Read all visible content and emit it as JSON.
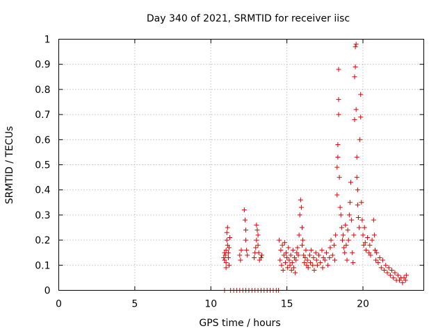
{
  "chart_data": {
    "type": "scatter",
    "title": "Day 340 of 2021, SRMTID for receiver iisc",
    "xlabel": "GPS time / hours",
    "ylabel": "SRMTID / TECUs",
    "xlim": [
      0,
      24
    ],
    "ylim": [
      0,
      1
    ],
    "xticks": [
      0,
      5,
      10,
      15,
      20
    ],
    "yticks": [
      0,
      0.1,
      0.2,
      0.3,
      0.4,
      0.5,
      0.6,
      0.7,
      0.8,
      0.9,
      1
    ],
    "xtick_labels": [
      "0",
      "5",
      "10",
      "15",
      "20"
    ],
    "ytick_labels": [
      "0",
      "0.1",
      "0.2",
      "0.3",
      "0.4",
      "0.5",
      "0.6",
      "0.7",
      "0.8",
      "0.9",
      "1"
    ],
    "grid": true,
    "marker": "+",
    "series_color": "#e00000",
    "series": [
      {
        "name": "SRMTID",
        "points": [
          [
            10.9,
            0.0
          ],
          [
            11.3,
            0.0
          ],
          [
            11.5,
            0.0
          ],
          [
            11.7,
            0.0
          ],
          [
            11.9,
            0.0
          ],
          [
            12.1,
            0.0
          ],
          [
            12.3,
            0.0
          ],
          [
            12.5,
            0.0
          ],
          [
            12.7,
            0.0
          ],
          [
            12.9,
            0.0
          ],
          [
            13.1,
            0.0
          ],
          [
            13.3,
            0.0
          ],
          [
            13.5,
            0.0
          ],
          [
            13.7,
            0.0
          ],
          [
            13.9,
            0.0
          ],
          [
            14.1,
            0.0
          ],
          [
            14.3,
            0.0
          ],
          [
            14.45,
            0.0
          ],
          [
            10.85,
            0.13
          ],
          [
            10.9,
            0.12
          ],
          [
            10.95,
            0.14
          ],
          [
            11.0,
            0.11
          ],
          [
            11.0,
            0.16
          ],
          [
            11.05,
            0.2
          ],
          [
            11.05,
            0.23
          ],
          [
            11.1,
            0.25
          ],
          [
            11.1,
            0.18
          ],
          [
            11.15,
            0.15
          ],
          [
            11.15,
            0.13
          ],
          [
            11.2,
            0.1
          ],
          [
            11.2,
            0.17
          ],
          [
            11.25,
            0.21
          ],
          [
            10.9,
            0.15
          ],
          [
            11.0,
            0.09
          ],
          [
            11.9,
            0.14
          ],
          [
            12.0,
            0.16
          ],
          [
            11.95,
            0.12
          ],
          [
            12.2,
            0.32
          ],
          [
            12.25,
            0.28
          ],
          [
            12.3,
            0.24
          ],
          [
            12.3,
            0.2
          ],
          [
            12.35,
            0.16
          ],
          [
            12.4,
            0.14
          ],
          [
            12.85,
            0.13
          ],
          [
            12.9,
            0.15
          ],
          [
            12.95,
            0.17
          ],
          [
            13.0,
            0.2
          ],
          [
            13.0,
            0.26
          ],
          [
            13.05,
            0.24
          ],
          [
            13.1,
            0.22
          ],
          [
            13.1,
            0.18
          ],
          [
            13.15,
            0.15
          ],
          [
            13.2,
            0.12
          ],
          [
            13.3,
            0.13
          ],
          [
            13.35,
            0.14
          ],
          [
            14.5,
            0.2
          ],
          [
            14.55,
            0.12
          ],
          [
            14.6,
            0.16
          ],
          [
            14.65,
            0.1
          ],
          [
            14.7,
            0.18
          ],
          [
            14.75,
            0.08
          ],
          [
            14.8,
            0.14
          ],
          [
            14.85,
            0.19
          ],
          [
            14.9,
            0.11
          ],
          [
            14.95,
            0.15
          ],
          [
            15.0,
            0.13
          ],
          [
            15.05,
            0.09
          ],
          [
            15.1,
            0.17
          ],
          [
            15.15,
            0.12
          ],
          [
            15.2,
            0.1
          ],
          [
            15.25,
            0.14
          ],
          [
            15.3,
            0.08
          ],
          [
            15.35,
            0.11
          ],
          [
            15.4,
            0.16
          ],
          [
            15.45,
            0.09
          ],
          [
            15.5,
            0.13
          ],
          [
            15.55,
            0.07
          ],
          [
            15.6,
            0.12
          ],
          [
            15.65,
            0.15
          ],
          [
            15.7,
            0.17
          ],
          [
            15.75,
            0.14
          ],
          [
            15.8,
            0.22
          ],
          [
            15.85,
            0.3
          ],
          [
            15.9,
            0.36
          ],
          [
            15.95,
            0.33
          ],
          [
            16.0,
            0.25
          ],
          [
            16.0,
            0.18
          ],
          [
            16.05,
            0.2
          ],
          [
            16.1,
            0.14
          ],
          [
            16.15,
            0.11
          ],
          [
            16.2,
            0.13
          ],
          [
            16.25,
            0.16
          ],
          [
            16.3,
            0.1
          ],
          [
            16.35,
            0.12
          ],
          [
            16.4,
            0.09
          ],
          [
            16.5,
            0.14
          ],
          [
            16.55,
            0.11
          ],
          [
            16.6,
            0.16
          ],
          [
            16.7,
            0.1
          ],
          [
            16.75,
            0.13
          ],
          [
            16.8,
            0.08
          ],
          [
            16.9,
            0.15
          ],
          [
            16.95,
            0.12
          ],
          [
            17.0,
            0.1
          ],
          [
            17.1,
            0.14
          ],
          [
            17.2,
            0.11
          ],
          [
            17.3,
            0.16
          ],
          [
            17.35,
            0.09
          ],
          [
            17.4,
            0.13
          ],
          [
            17.5,
            0.12
          ],
          [
            17.6,
            0.15
          ],
          [
            17.7,
            0.1
          ],
          [
            17.8,
            0.13
          ],
          [
            17.85,
            0.17
          ],
          [
            17.9,
            0.2
          ],
          [
            18.0,
            0.14
          ],
          [
            18.1,
            0.18
          ],
          [
            18.15,
            0.12
          ],
          [
            18.2,
            0.22
          ],
          [
            18.3,
            0.38
          ],
          [
            18.3,
            0.49
          ],
          [
            18.35,
            0.53
          ],
          [
            18.35,
            0.58
          ],
          [
            18.4,
            0.7
          ],
          [
            18.4,
            0.76
          ],
          [
            18.4,
            0.88
          ],
          [
            18.45,
            0.45
          ],
          [
            18.5,
            0.33
          ],
          [
            18.55,
            0.3
          ],
          [
            18.6,
            0.25
          ],
          [
            18.65,
            0.2
          ],
          [
            18.7,
            0.22
          ],
          [
            18.75,
            0.17
          ],
          [
            18.8,
            0.15
          ],
          [
            18.85,
            0.26
          ],
          [
            18.9,
            0.18
          ],
          [
            18.95,
            0.12
          ],
          [
            19.0,
            0.24
          ],
          [
            19.05,
            0.2
          ],
          [
            19.1,
            0.3
          ],
          [
            19.15,
            0.35
          ],
          [
            19.2,
            0.43
          ],
          [
            19.25,
            0.28
          ],
          [
            19.3,
            0.15
          ],
          [
            19.35,
            0.11
          ],
          [
            19.4,
            0.22
          ],
          [
            19.45,
            0.68
          ],
          [
            19.45,
            0.85
          ],
          [
            19.5,
            0.89
          ],
          [
            19.5,
            0.97
          ],
          [
            19.55,
            0.98
          ],
          [
            19.55,
            0.72
          ],
          [
            19.6,
            0.53
          ],
          [
            19.6,
            0.45
          ],
          [
            19.65,
            0.4
          ],
          [
            19.65,
            0.34
          ],
          [
            19.7,
            0.29
          ],
          [
            19.75,
            0.25
          ],
          [
            19.8,
            0.6
          ],
          [
            19.85,
            0.69
          ],
          [
            19.85,
            0.78
          ],
          [
            19.9,
            0.35
          ],
          [
            19.95,
            0.28
          ],
          [
            20.0,
            0.22
          ],
          [
            20.05,
            0.18
          ],
          [
            20.1,
            0.25
          ],
          [
            20.15,
            0.19
          ],
          [
            20.2,
            0.16
          ],
          [
            20.3,
            0.21
          ],
          [
            20.4,
            0.15
          ],
          [
            20.45,
            0.18
          ],
          [
            20.5,
            0.14
          ],
          [
            20.6,
            0.2
          ],
          [
            20.7,
            0.28
          ],
          [
            20.75,
            0.22
          ],
          [
            20.8,
            0.16
          ],
          [
            20.85,
            0.12
          ],
          [
            20.9,
            0.15
          ],
          [
            21.0,
            0.11
          ],
          [
            21.1,
            0.13
          ],
          [
            21.2,
            0.09
          ],
          [
            21.3,
            0.12
          ],
          [
            21.4,
            0.08
          ],
          [
            21.5,
            0.1
          ],
          [
            21.6,
            0.07
          ],
          [
            21.7,
            0.09
          ],
          [
            21.8,
            0.06
          ],
          [
            21.9,
            0.08
          ],
          [
            22.0,
            0.05
          ],
          [
            22.1,
            0.07
          ],
          [
            22.2,
            0.04
          ],
          [
            22.3,
            0.06
          ],
          [
            22.4,
            0.04
          ],
          [
            22.5,
            0.05
          ],
          [
            22.6,
            0.03
          ],
          [
            22.7,
            0.05
          ],
          [
            22.8,
            0.04
          ],
          [
            22.85,
            0.06
          ]
        ]
      }
    ]
  }
}
